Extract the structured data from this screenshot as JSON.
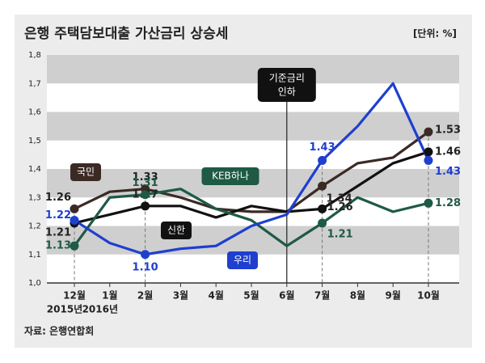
{
  "chart_data": {
    "type": "line",
    "title": "은행 주택담보대출 가산금리 상승세",
    "unit": "[단위: %]",
    "source": "자료: 은행연합회",
    "annotation": [
      "기준금리",
      "인하"
    ],
    "categories": [
      "12월",
      "1월",
      "2월",
      "3월",
      "4월",
      "5월",
      "6월",
      "7월",
      "8월",
      "9월",
      "10월"
    ],
    "category_sublabels": [
      "2015년",
      "2016년",
      null,
      null,
      null,
      null,
      null,
      null,
      null,
      null,
      null
    ],
    "ylim": [
      1.0,
      1.8
    ],
    "yticks": [
      {
        "value": 1.0,
        "label": "1,0"
      },
      {
        "value": 1.1,
        "label": "1,1"
      },
      {
        "value": 1.2,
        "label": "1,2"
      },
      {
        "value": 1.3,
        "label": "1,3"
      },
      {
        "value": 1.4,
        "label": "1,4"
      },
      {
        "value": 1.5,
        "label": "1,5"
      },
      {
        "value": 1.6,
        "label": "1,6"
      },
      {
        "value": 1.7,
        "label": "1,7"
      },
      {
        "value": 1.8,
        "label": "1,8"
      }
    ],
    "grid": "bands",
    "series": [
      {
        "name": "국민",
        "color": "#3b2a24",
        "values": [
          1.26,
          1.32,
          1.33,
          1.3,
          1.26,
          1.25,
          1.25,
          1.34,
          1.42,
          1.44,
          1.53
        ],
        "value_labels": [
          "1.26",
          null,
          "1.33",
          null,
          null,
          null,
          null,
          "1.34",
          null,
          null,
          "1.53"
        ]
      },
      {
        "name": "신한",
        "color": "#111111",
        "values": [
          1.21,
          1.24,
          1.27,
          1.27,
          1.23,
          1.27,
          1.25,
          1.26,
          1.34,
          1.42,
          1.46
        ],
        "value_labels": [
          "1.21",
          null,
          "1.27",
          null,
          null,
          null,
          null,
          "1.26",
          null,
          null,
          "1.46"
        ]
      },
      {
        "name": "KEB하나",
        "color": "#1e5a44",
        "values": [
          1.13,
          1.3,
          1.31,
          1.33,
          1.26,
          1.22,
          1.13,
          1.21,
          1.3,
          1.25,
          1.28
        ],
        "value_labels": [
          "1.13",
          null,
          "1.31",
          null,
          null,
          null,
          null,
          "1.21",
          null,
          null,
          "1.28"
        ]
      },
      {
        "name": "우리",
        "color": "#1f3fcf",
        "values": [
          1.22,
          1.14,
          1.1,
          1.12,
          1.13,
          1.2,
          1.24,
          1.43,
          1.55,
          1.7,
          1.43
        ],
        "value_labels": [
          "1.22",
          null,
          "1.10",
          null,
          null,
          null,
          null,
          "1.43",
          null,
          null,
          "1.43"
        ]
      }
    ]
  }
}
